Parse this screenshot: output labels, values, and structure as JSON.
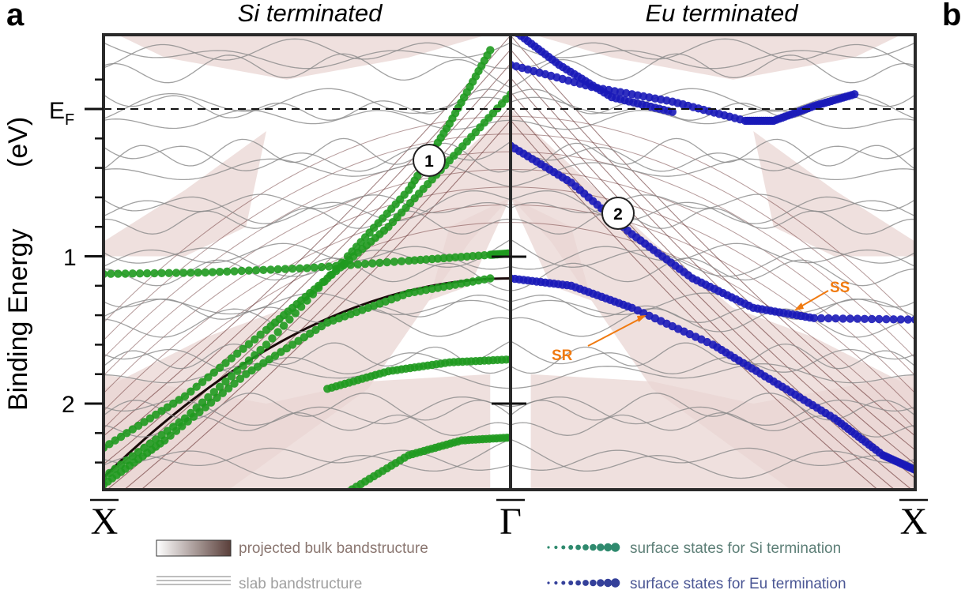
{
  "panel_letters": {
    "left": "a",
    "right": "b"
  },
  "titles": {
    "left": "Si terminated",
    "right": "Eu terminated"
  },
  "y_axis": {
    "label": "Binding Energy",
    "unit": "(eV)",
    "fermi_main": "E",
    "fermi_sub": "F"
  },
  "k_labels": {
    "left": "X",
    "center": "Γ",
    "right": "X"
  },
  "legend": {
    "bulk": "projected bulk bandstructure",
    "slab": "slab bandstructure",
    "si_states": "surface states for Si termination",
    "eu_states": "surface states for Eu termination"
  },
  "annotations": {
    "ss": "SS",
    "sr": "SR",
    "marker1": "1",
    "marker2": "2"
  },
  "colors": {
    "si_states": "#1f9a1f",
    "eu_states": "#1a1ab8",
    "bulk_fill": "#e9d6d3",
    "bulk_line": "#5a1f1f",
    "slab_line": "#8a8a8a",
    "annotation": "#f07a10",
    "legend_si_dots": "#2f8a6e",
    "legend_eu_dots": "#34409a"
  },
  "chart_data": {
    "type": "line",
    "x_axis": {
      "tick_labels": [
        "X",
        "Γ",
        "X"
      ],
      "range": [
        -1,
        1
      ]
    },
    "y_axis": {
      "label": "Binding Energy (eV)",
      "range": [
        -0.5,
        2.6
      ],
      "inverted": true,
      "major_ticks": [
        0,
        1,
        2
      ],
      "tick_labels": [
        "E_F",
        "1",
        "2"
      ]
    },
    "fermi_level": 0,
    "series": [
      {
        "name": "surface states for Si termination",
        "panel": "Si terminated",
        "bands": [
          [
            [
              -1.0,
              1.12
            ],
            [
              -0.75,
              1.11
            ],
            [
              -0.5,
              1.08
            ],
            [
              -0.25,
              1.03
            ],
            [
              -0.05,
              0.99
            ],
            [
              0.0,
              0.98
            ]
          ],
          [
            [
              -1.0,
              2.5
            ],
            [
              -0.8,
              2.1
            ],
            [
              -0.6,
              1.6
            ],
            [
              -0.4,
              1.0
            ],
            [
              -0.25,
              0.55
            ],
            [
              -0.15,
              0.1
            ],
            [
              -0.05,
              -0.4
            ]
          ],
          [
            [
              -1.0,
              2.3
            ],
            [
              -0.8,
              1.95
            ],
            [
              -0.6,
              1.5
            ],
            [
              -0.45,
              1.15
            ],
            [
              -0.3,
              0.8
            ],
            [
              -0.15,
              0.35
            ],
            [
              0.0,
              -0.1
            ]
          ],
          [
            [
              -1.0,
              2.55
            ],
            [
              -0.85,
              2.25
            ],
            [
              -0.65,
              1.8
            ],
            [
              -0.45,
              1.45
            ],
            [
              -0.25,
              1.25
            ],
            [
              -0.05,
              1.15
            ]
          ],
          [
            [
              -0.45,
              1.9
            ],
            [
              -0.3,
              1.78
            ],
            [
              -0.15,
              1.72
            ],
            [
              0.0,
              1.7
            ]
          ],
          [
            [
              -0.6,
              2.8
            ],
            [
              -0.4,
              2.6
            ],
            [
              -0.25,
              2.35
            ],
            [
              -0.12,
              2.25
            ],
            [
              0.0,
              2.23
            ]
          ]
        ]
      },
      {
        "name": "surface states for Eu termination",
        "panel": "Eu terminated",
        "bands": [
          [
            [
              0.0,
              1.15
            ],
            [
              0.15,
              1.2
            ],
            [
              0.3,
              1.35
            ],
            [
              0.5,
              1.6
            ],
            [
              0.65,
              1.85
            ],
            [
              0.8,
              2.1
            ],
            [
              0.92,
              2.35
            ],
            [
              1.0,
              2.45
            ]
          ],
          [
            [
              0.0,
              0.25
            ],
            [
              0.15,
              0.5
            ],
            [
              0.3,
              0.85
            ],
            [
              0.45,
              1.15
            ],
            [
              0.6,
              1.35
            ],
            [
              0.75,
              1.42
            ],
            [
              1.0,
              1.43
            ]
          ],
          [
            [
              0.0,
              -0.3
            ],
            [
              0.2,
              -0.15
            ],
            [
              0.4,
              -0.05
            ],
            [
              0.58,
              0.08
            ],
            [
              0.65,
              0.08
            ],
            [
              0.75,
              -0.02
            ],
            [
              0.85,
              -0.1
            ]
          ],
          [
            [
              0.0,
              -0.55
            ],
            [
              0.12,
              -0.3
            ],
            [
              0.25,
              -0.08
            ],
            [
              0.4,
              0.02
            ]
          ]
        ]
      }
    ]
  }
}
